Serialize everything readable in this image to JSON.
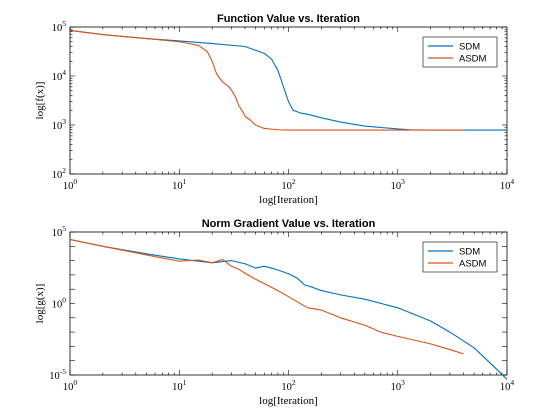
{
  "colors": {
    "sdm": "#0072BD",
    "asdm": "#D95319",
    "axis": "#000000",
    "background": "#ffffff"
  },
  "chart_data": [
    {
      "type": "line",
      "title": "Function Value vs. Iteration",
      "xlabel": "log[Iteration]",
      "ylabel": "log[f(x)]",
      "xscale": "log",
      "yscale": "log",
      "xlim": [
        1,
        10000
      ],
      "ylim": [
        100,
        100000
      ],
      "xtick_labels": [
        {
          "base": "10",
          "exp": "0"
        },
        {
          "base": "10",
          "exp": "1"
        },
        {
          "base": "10",
          "exp": "2"
        },
        {
          "base": "10",
          "exp": "3"
        },
        {
          "base": "10",
          "exp": "4"
        }
      ],
      "ytick_labels": [
        {
          "base": "10",
          "exp": "2"
        },
        {
          "base": "10",
          "exp": "3"
        },
        {
          "base": "10",
          "exp": "4"
        },
        {
          "base": "10",
          "exp": "5"
        }
      ],
      "legend_position": "top-right",
      "series": [
        {
          "name": "SDM",
          "color": "#0072BD",
          "x": [
            1,
            2,
            5,
            10,
            20,
            40,
            60,
            70,
            80,
            90,
            100,
            110,
            130,
            150,
            200,
            300,
            500,
            1000,
            1300,
            2000,
            4000,
            10000
          ],
          "y": [
            85000,
            70000,
            58000,
            52000,
            46000,
            40000,
            29000,
            22000,
            13000,
            6000,
            3000,
            2000,
            1750,
            1650,
            1400,
            1150,
            950,
            830,
            800,
            790,
            790,
            790
          ]
        },
        {
          "name": "ASDM",
          "color": "#D95319",
          "x": [
            1,
            2,
            5,
            10,
            15,
            18,
            20,
            22,
            25,
            28,
            30,
            33,
            35,
            38,
            40,
            45,
            50,
            60,
            80,
            100,
            200,
            500,
            1000,
            2000,
            4000
          ],
          "y": [
            85000,
            70000,
            58000,
            50000,
            42000,
            32000,
            20000,
            11000,
            7500,
            6200,
            5200,
            3600,
            2500,
            1900,
            1500,
            1250,
            1000,
            850,
            800,
            790,
            790,
            790,
            790,
            790,
            790
          ]
        }
      ]
    },
    {
      "type": "line",
      "title": "Norm Gradient Value vs. Iteration",
      "xlabel": "log[Iteration]",
      "ylabel": "log[g(x)]",
      "xscale": "log",
      "yscale": "log",
      "xlim": [
        1,
        10000
      ],
      "ylim": [
        1e-05,
        100000
      ],
      "xtick_labels": [
        {
          "base": "10",
          "exp": "0"
        },
        {
          "base": "10",
          "exp": "1"
        },
        {
          "base": "10",
          "exp": "2"
        },
        {
          "base": "10",
          "exp": "3"
        },
        {
          "base": "10",
          "exp": "4"
        }
      ],
      "ytick_labels": [
        {
          "base": "10",
          "exp": "-5"
        },
        {
          "base": "10",
          "exp": "0"
        },
        {
          "base": "10",
          "exp": "5"
        }
      ],
      "legend_position": "top-right",
      "series": [
        {
          "name": "SDM",
          "color": "#0072BD",
          "x": [
            1,
            2,
            5,
            10,
            20,
            30,
            40,
            50,
            60,
            70,
            80,
            100,
            120,
            140,
            160,
            200,
            300,
            500,
            1000,
            2000,
            3000,
            5000,
            7000,
            10000
          ],
          "y": [
            30000,
            10000,
            3000,
            1300,
            700,
            1000,
            600,
            300,
            400,
            300,
            220,
            120,
            60,
            20,
            15,
            8,
            4,
            2,
            0.5,
            0.06,
            0.01,
            0.0008,
            7e-05,
            5e-06
          ]
        },
        {
          "name": "ASDM",
          "color": "#D95319",
          "x": [
            1,
            2,
            5,
            10,
            15,
            20,
            25,
            30,
            35,
            40,
            50,
            60,
            80,
            100,
            150,
            200,
            300,
            500,
            700,
            1000,
            2000,
            3000,
            4000
          ],
          "y": [
            30000,
            10000,
            2500,
            900,
            1100,
            700,
            1200,
            400,
            250,
            130,
            50,
            25,
            8,
            3,
            0.5,
            0.35,
            0.1,
            0.03,
            0.01,
            0.005,
            0.0015,
            0.0006,
            0.0003
          ]
        }
      ]
    }
  ]
}
